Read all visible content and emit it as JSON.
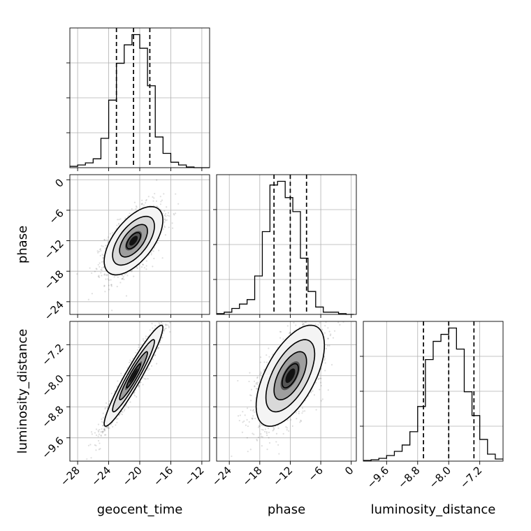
{
  "chart_data": {
    "type": "corner",
    "parameters": [
      {
        "name": "geocent_time",
        "label": "geocent_time",
        "range": [
          -29,
          -11
        ],
        "ticks": [
          -28,
          -24,
          -20,
          -16,
          -12
        ],
        "tick_labels": [
          "−28",
          "−24",
          "−20",
          "−16",
          "−12"
        ],
        "quantiles": [
          -23.0,
          -20.8,
          -18.7
        ]
      },
      {
        "name": "phase",
        "label": "phase",
        "range": [
          -26.5,
          1
        ],
        "ticks": [
          -24,
          -18,
          -12,
          -6,
          0
        ],
        "tick_labels": [
          "−24",
          "−18",
          "−12",
          "−6",
          "0"
        ],
        "quantiles": [
          -15.2,
          -12.0,
          -8.8
        ]
      },
      {
        "name": "luminosity_distance",
        "label": "luminosity_distance",
        "range": [
          -10.2,
          -6.6
        ],
        "ticks": [
          -9.6,
          -8.8,
          -8.0,
          -7.2
        ],
        "tick_labels": [
          "−9.6",
          "−8.8",
          "−8.0",
          "−7.2"
        ],
        "quantiles": [
          -8.65,
          -8.0,
          -7.35
        ]
      }
    ],
    "grid": true,
    "hist_style": "step",
    "quantile_line_style": "dashed",
    "contours": "density contours with grayscale-filled 2D histogram and scatter points",
    "hist_1d": [
      {
        "param": "geocent_time",
        "bin_edges": [
          -29,
          -28,
          -27,
          -26,
          -25,
          -24,
          -23,
          -22,
          -21,
          -20,
          -19,
          -18,
          -17,
          -16,
          -15,
          -14,
          -13,
          -12,
          -11
        ],
        "counts": [
          2,
          4,
          7,
          13,
          43,
          99,
          153,
          180,
          195,
          175,
          120,
          45,
          21,
          8,
          4,
          1,
          0,
          0
        ]
      },
      {
        "param": "phase",
        "bin_edges": [
          -26.5,
          -25,
          -23.5,
          -22,
          -20.5,
          -19,
          -17.5,
          -16,
          -14.5,
          -13,
          -11.5,
          -10,
          -8.5,
          -7,
          -5.5,
          -4,
          -2.5,
          -1,
          0.5
        ],
        "counts": [
          1,
          3,
          8,
          14,
          20,
          52,
          112,
          175,
          180,
          158,
          139,
          76,
          31,
          10,
          3,
          3,
          1,
          0
        ]
      },
      {
        "param": "luminosity_distance",
        "bin_edges": [
          -10.2,
          -10.0,
          -9.8,
          -9.6,
          -9.4,
          -9.2,
          -9.0,
          -8.8,
          -8.6,
          -8.4,
          -8.2,
          -8.0,
          -7.8,
          -7.6,
          -7.4,
          -7.2,
          -7.0,
          -6.8,
          -6.6
        ],
        "counts": [
          1,
          2,
          4,
          8,
          14,
          23,
          42,
          78,
          145,
          171,
          181,
          190,
          160,
          99,
          65,
          31,
          10,
          3
        ]
      }
    ],
    "hist_2d": [
      {
        "x": "geocent_time",
        "y": "phase",
        "center": [
          -20.8,
          -12.0
        ],
        "sigma": [
          1.8,
          3.2
        ],
        "rho": 0.6
      },
      {
        "x": "geocent_time",
        "y": "luminosity_distance",
        "center": [
          -20.8,
          -8.0
        ],
        "sigma": [
          1.8,
          0.62
        ],
        "rho": 0.95
      },
      {
        "x": "phase",
        "y": "luminosity_distance",
        "center": [
          -12.0,
          -8.0
        ],
        "sigma": [
          3.2,
          0.62
        ],
        "rho": 0.6
      }
    ]
  }
}
